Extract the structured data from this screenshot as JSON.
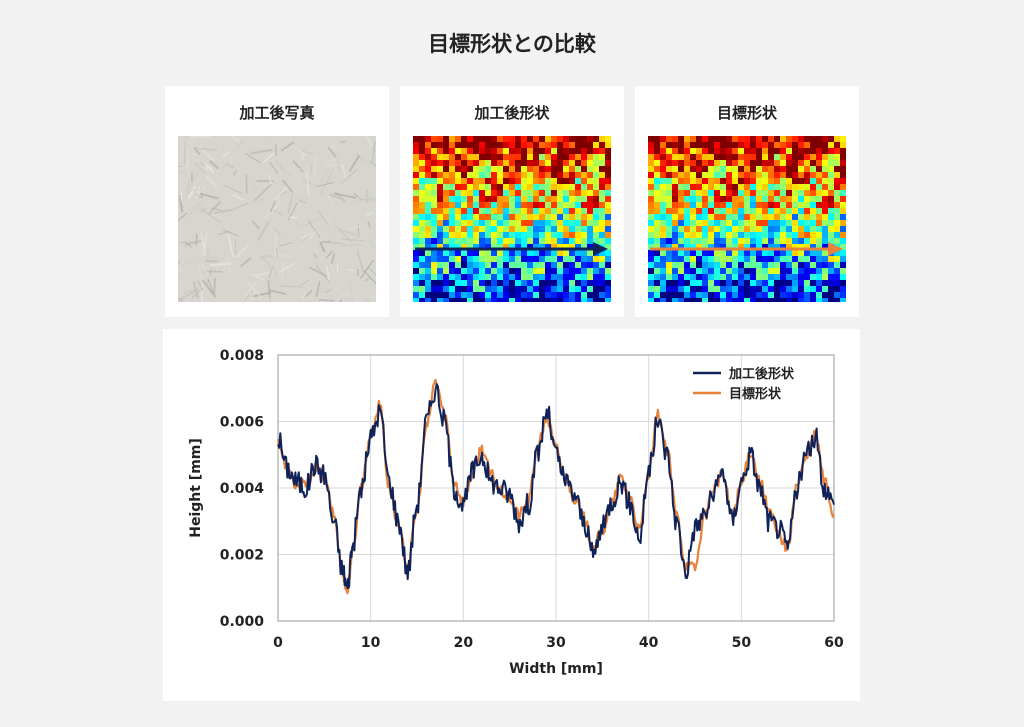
{
  "page": {
    "title": "目標形状との比較"
  },
  "panels": [
    {
      "label": "加工後写真"
    },
    {
      "label": "加工後形状"
    },
    {
      "label": "目標形状"
    }
  ],
  "colors": {
    "measured": "#0f2358",
    "target": "#e8823a",
    "arrow_measured": "#0f2358",
    "arrow_target": "#e8823a"
  },
  "chart_data": {
    "type": "line",
    "title": "",
    "xlabel": "Width [mm]",
    "ylabel": "Height [mm]",
    "xlim": [
      0,
      60
    ],
    "ylim": [
      0,
      0.008
    ],
    "xticks": [
      0,
      10,
      20,
      30,
      40,
      50,
      60
    ],
    "xtick_labels": [
      "0",
      "10",
      "20",
      "30",
      "40",
      "50",
      "60"
    ],
    "yticks": [
      0,
      0.002,
      0.004,
      0.006,
      0.008
    ],
    "ytick_labels": [
      "0.000",
      "0.002",
      "0.004",
      "0.006",
      "0.008"
    ],
    "grid": true,
    "legend": "top-right",
    "series": [
      {
        "name": "加工後形状",
        "color": "#0f2358",
        "x": [
          0,
          1,
          2,
          3,
          4,
          5,
          6,
          7,
          7.5,
          8,
          9,
          10,
          11,
          12,
          13,
          14,
          15,
          16,
          17,
          18,
          19,
          20,
          21,
          22,
          23,
          24,
          25,
          26,
          27,
          28,
          29,
          30,
          31,
          32,
          33,
          34,
          35,
          36,
          37,
          38,
          39,
          40,
          41,
          42,
          43,
          44,
          45,
          46,
          47,
          48,
          49,
          50,
          51,
          52,
          53,
          54,
          55,
          56,
          57,
          58,
          59,
          60
        ],
        "y": [
          0.0055,
          0.0046,
          0.0042,
          0.004,
          0.0047,
          0.0044,
          0.003,
          0.0015,
          0.001,
          0.0022,
          0.004,
          0.0055,
          0.0063,
          0.0042,
          0.003,
          0.0015,
          0.0035,
          0.006,
          0.007,
          0.006,
          0.004,
          0.0035,
          0.0045,
          0.005,
          0.0042,
          0.004,
          0.0038,
          0.003,
          0.0035,
          0.005,
          0.0063,
          0.005,
          0.0042,
          0.0038,
          0.003,
          0.002,
          0.0028,
          0.0036,
          0.0042,
          0.0035,
          0.0025,
          0.0045,
          0.006,
          0.005,
          0.003,
          0.0015,
          0.0028,
          0.0032,
          0.0038,
          0.0045,
          0.003,
          0.0042,
          0.005,
          0.004,
          0.003,
          0.0028,
          0.0022,
          0.004,
          0.005,
          0.0055,
          0.004,
          0.0035
        ]
      },
      {
        "name": "目標形状",
        "color": "#e8823a",
        "x": [
          0,
          1,
          2,
          3,
          4,
          5,
          6,
          7,
          7.5,
          8,
          9,
          10,
          11,
          12,
          13,
          14,
          15,
          16,
          17,
          18,
          19,
          20,
          21,
          22,
          23,
          24,
          25,
          26,
          27,
          28,
          29,
          30,
          31,
          32,
          33,
          34,
          35,
          36,
          37,
          38,
          39,
          40,
          41,
          42,
          43,
          44,
          45,
          46,
          47,
          48,
          49,
          50,
          51,
          52,
          53,
          54,
          55,
          56,
          57,
          58,
          59,
          60
        ],
        "y": [
          0.0054,
          0.0045,
          0.0041,
          0.0041,
          0.0046,
          0.0043,
          0.0032,
          0.0014,
          0.0009,
          0.002,
          0.0041,
          0.0056,
          0.0065,
          0.004,
          0.0028,
          0.0017,
          0.0033,
          0.0058,
          0.0072,
          0.0062,
          0.0042,
          0.0036,
          0.0044,
          0.0052,
          0.0044,
          0.0039,
          0.0037,
          0.0032,
          0.0036,
          0.0052,
          0.0061,
          0.0052,
          0.0043,
          0.0037,
          0.0031,
          0.0022,
          0.0027,
          0.0035,
          0.0043,
          0.0037,
          0.0027,
          0.0044,
          0.0062,
          0.0051,
          0.0032,
          0.0017,
          0.0016,
          0.0031,
          0.004,
          0.0044,
          0.0032,
          0.0041,
          0.0051,
          0.0042,
          0.0033,
          0.0026,
          0.0022,
          0.0041,
          0.0049,
          0.0056,
          0.0042,
          0.0032
        ]
      }
    ]
  }
}
